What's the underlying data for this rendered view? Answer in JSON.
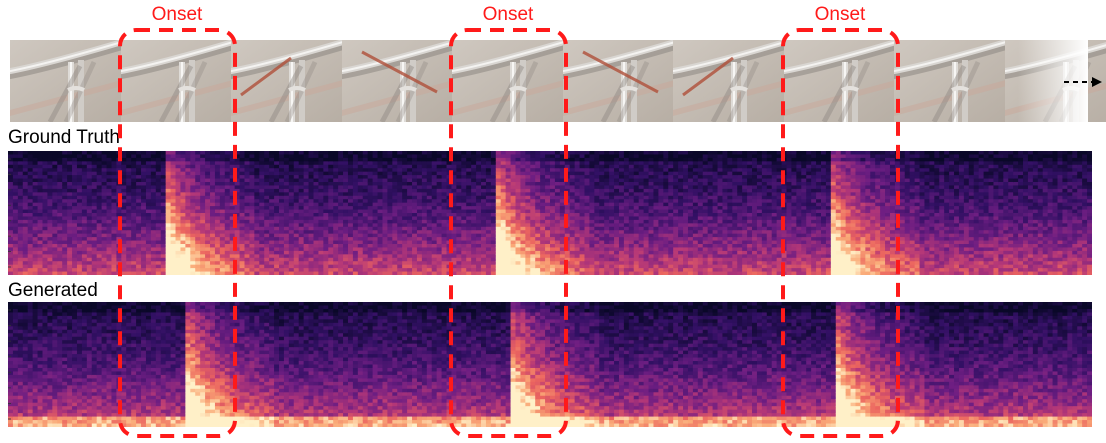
{
  "header": {
    "onset_labels": [
      "Onset",
      "Onset",
      "Onset"
    ]
  },
  "panels": {
    "ground_truth": "Ground Truth",
    "generated": "Generated"
  },
  "colors": {
    "onset_box": "#ff1a1a",
    "spectrogram_dark": "#1a0a3a",
    "spectrogram_bright": "#fff0c8"
  },
  "icons": {
    "continuation": "dashed-arrow-right-icon"
  }
}
